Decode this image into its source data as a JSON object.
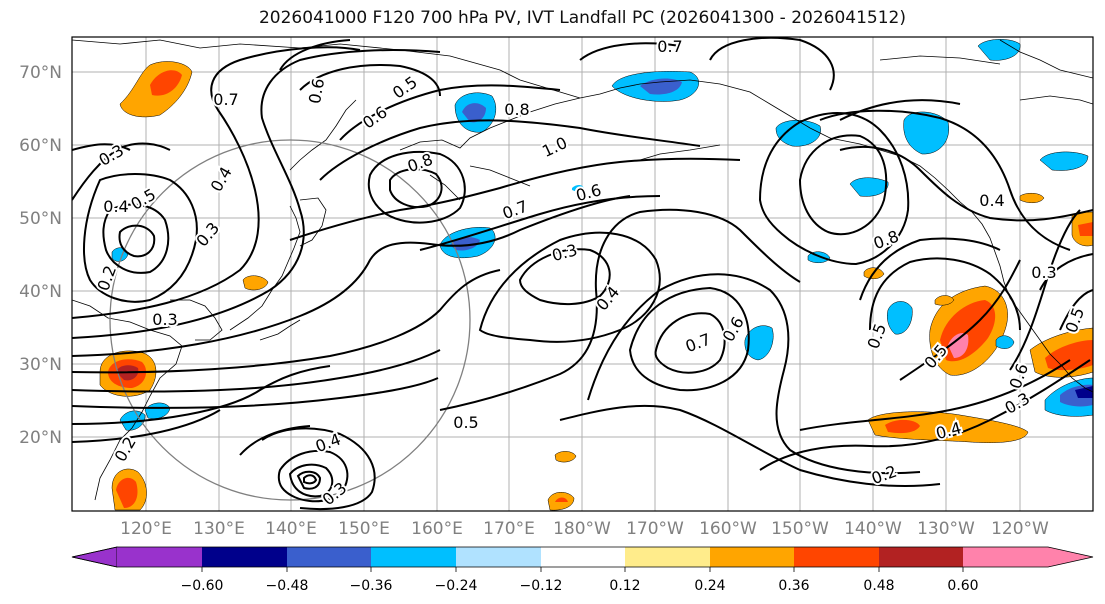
{
  "title": "2026041000 F120 700 hPa PV, IVT Landfall PC (2026041300 - 2026041512)",
  "map": {
    "lat_labels": [
      "70°N",
      "60°N",
      "50°N",
      "40°N",
      "30°N",
      "20°N"
    ],
    "lon_labels": [
      "120°E",
      "130°E",
      "140°E",
      "150°E",
      "160°E",
      "170°E",
      "180°W",
      "170°W",
      "160°W",
      "150°W",
      "140°W",
      "130°W",
      "120°W"
    ],
    "contour_labels": [
      "0.7",
      "0.7",
      "0.6",
      "0.5",
      "0.6",
      "0.8",
      "1.0",
      "0.8",
      "0.7",
      "0.6",
      "0.3",
      "0.4",
      "0.4",
      "0.5",
      "0.3",
      "0.3",
      "0.2",
      "0.3",
      "0.4",
      "0.7",
      "0.6",
      "0.5",
      "0.5",
      "0.4",
      "0.8",
      "0.3",
      "0.2",
      "0.5",
      "0.3",
      "0.4",
      "0.2",
      "0.3",
      "0.4",
      "0.6",
      "0.5"
    ]
  },
  "colorbar": {
    "ticks": [
      "−0.60",
      "−0.48",
      "−0.36",
      "−0.24",
      "−0.12",
      "0.12",
      "0.24",
      "0.36",
      "0.48",
      "0.60"
    ],
    "colors": [
      "#9932CC",
      "#00008B",
      "#3A5FCD",
      "#00BFFF",
      "#B0E2FF",
      "#FFFFFF",
      "#FFEC8B",
      "#FFA500",
      "#FF4500",
      "#B22222",
      "#FF82AB"
    ]
  }
}
